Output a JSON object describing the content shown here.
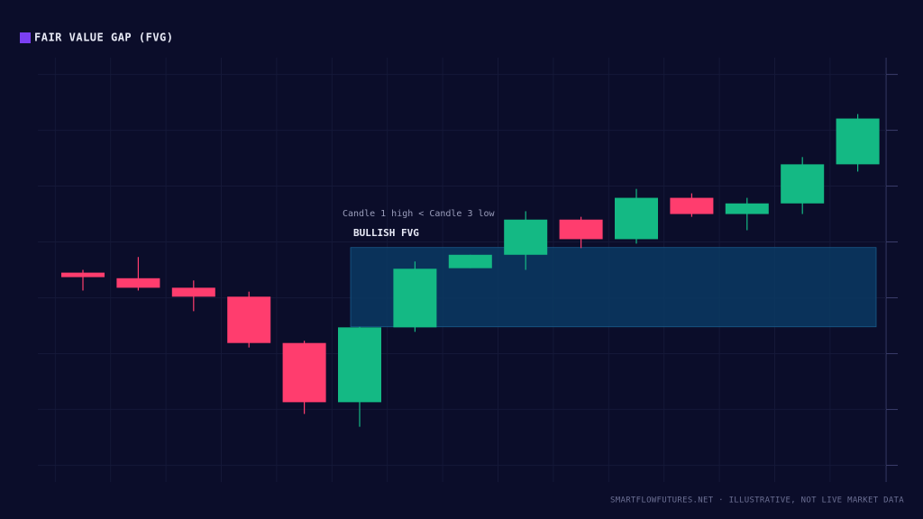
{
  "chart_data": {
    "type": "candlestick",
    "legend": "FAIR VALUE GAP (FVG)",
    "legend_color": "#7b3ff2",
    "open": [
      3.45,
      3.35,
      3.18,
      3.02,
      2.19,
      1.13,
      2.47,
      3.53,
      3.77,
      4.4,
      4.05,
      4.79,
      4.5,
      4.69,
      5.39
    ],
    "high": [
      3.5,
      3.73,
      3.31,
      3.11,
      2.23,
      2.48,
      3.65,
      3.77,
      4.55,
      4.45,
      4.95,
      4.87,
      4.79,
      5.52,
      6.29
    ],
    "low": [
      3.13,
      3.13,
      2.76,
      2.11,
      0.92,
      0.69,
      2.39,
      3.53,
      3.5,
      3.89,
      3.97,
      4.45,
      4.21,
      4.5,
      5.26
    ],
    "close": [
      3.37,
      3.18,
      3.02,
      2.19,
      1.13,
      2.47,
      3.52,
      3.77,
      4.4,
      4.05,
      4.79,
      4.5,
      4.69,
      5.39,
      6.21
    ],
    "up_color": "#14b984",
    "down_color": "#ff3d6e",
    "zone": {
      "label": "BULLISH FVG",
      "note": "Candle 1 high < Candle 3 low",
      "bottom": 2.48,
      "top": 3.9,
      "color": "#0a3a63"
    },
    "ylim": [
      -0.3,
      7.3
    ],
    "yticks": [
      0,
      1,
      2,
      3,
      4,
      5,
      6,
      7
    ],
    "grid": true,
    "footer": "SMARTFLOWFUTURES.NET · ILLUSTRATIVE, NOT LIVE MARKET DATA"
  }
}
